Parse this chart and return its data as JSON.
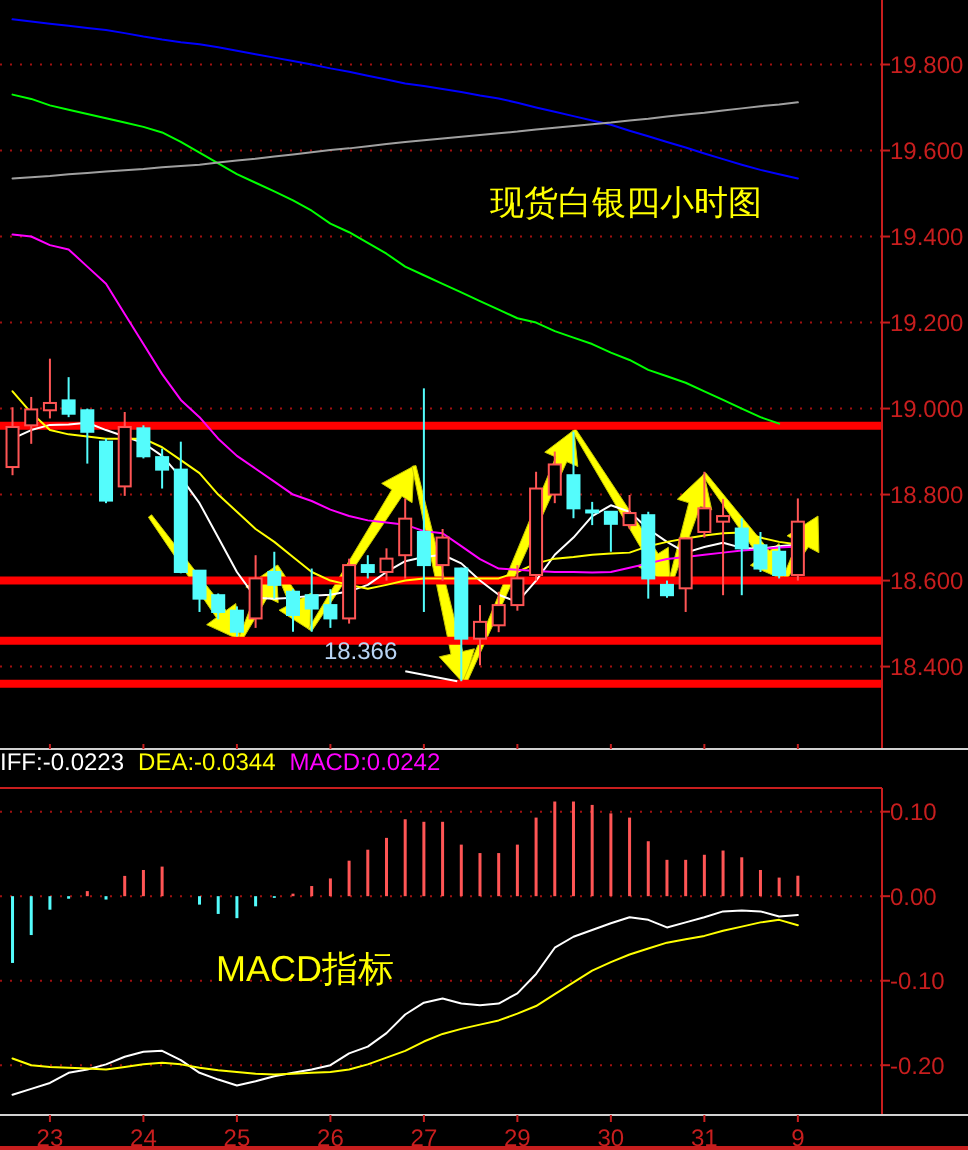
{
  "chart_data": [
    {
      "type": "candlestick",
      "title": "现货白银四小时图",
      "categories": [
        null,
        null,
        "23",
        null,
        null,
        null,
        null,
        "24",
        null,
        null,
        null,
        null,
        "25",
        null,
        null,
        null,
        null,
        "26",
        null,
        null,
        null,
        null,
        "27",
        null,
        null,
        null,
        null,
        "29",
        null,
        null,
        null,
        null,
        "30",
        null,
        null,
        null,
        null,
        "31",
        null,
        null,
        null,
        null,
        "9"
      ],
      "ohlc": [
        [
          18.864,
          19.003,
          18.845,
          18.957
        ],
        [
          18.961,
          19.027,
          18.918,
          18.998
        ],
        [
          18.996,
          19.116,
          18.977,
          19.013
        ],
        [
          19.019,
          19.073,
          18.98,
          18.988
        ],
        [
          18.996,
          19.0,
          18.872,
          18.946
        ],
        [
          18.923,
          18.93,
          18.78,
          18.786
        ],
        [
          18.819,
          18.992,
          18.797,
          18.957
        ],
        [
          18.954,
          18.961,
          18.884,
          18.889
        ],
        [
          18.887,
          18.907,
          18.814,
          18.858
        ],
        [
          18.858,
          18.923,
          18.617,
          18.62
        ],
        [
          18.623,
          18.623,
          18.527,
          18.558
        ],
        [
          18.566,
          18.57,
          18.51,
          18.527
        ],
        [
          18.53,
          18.54,
          18.47,
          18.481
        ],
        [
          18.512,
          18.659,
          18.49,
          18.605
        ],
        [
          18.62,
          18.667,
          18.558,
          18.59
        ],
        [
          18.574,
          18.58,
          18.481,
          18.52
        ],
        [
          18.566,
          18.628,
          18.481,
          18.535
        ],
        [
          18.543,
          18.58,
          18.49,
          18.512
        ],
        [
          18.512,
          18.651,
          18.5,
          18.636
        ],
        [
          18.636,
          18.659,
          18.605,
          18.62
        ],
        [
          18.62,
          18.675,
          18.6,
          18.651
        ],
        [
          18.659,
          18.791,
          18.605,
          18.744
        ],
        [
          18.713,
          19.047,
          18.527,
          18.636
        ],
        [
          18.636,
          18.72,
          18.6,
          18.7
        ],
        [
          18.628,
          18.63,
          18.366,
          18.465
        ],
        [
          18.465,
          18.543,
          18.403,
          18.504
        ],
        [
          18.496,
          18.574,
          18.48,
          18.543
        ],
        [
          18.543,
          18.636,
          18.53,
          18.605
        ],
        [
          18.613,
          18.853,
          18.6,
          18.814
        ],
        [
          18.8,
          18.9,
          18.78,
          18.87
        ],
        [
          18.845,
          18.946,
          18.745,
          18.768
        ],
        [
          18.763,
          18.783,
          18.729,
          18.76
        ],
        [
          18.76,
          18.76,
          18.667,
          18.732
        ],
        [
          18.729,
          18.799,
          18.72,
          18.757
        ],
        [
          18.752,
          18.76,
          18.558,
          18.605
        ],
        [
          18.59,
          18.6,
          18.56,
          18.566
        ],
        [
          18.582,
          18.7,
          18.527,
          18.698
        ],
        [
          18.713,
          18.853,
          18.7,
          18.768
        ],
        [
          18.737,
          18.79,
          18.566,
          18.75
        ],
        [
          18.721,
          18.745,
          18.566,
          18.675
        ],
        [
          18.682,
          18.713,
          18.62,
          18.628
        ],
        [
          18.667,
          18.68,
          18.605,
          18.613
        ],
        [
          18.613,
          18.791,
          18.6,
          18.737
        ]
      ],
      "series": [
        {
          "type": "line",
          "color": "#ffffff",
          "values": [
            18.93,
            18.95,
            18.962,
            18.963,
            18.967,
            18.95,
            18.935,
            18.92,
            18.89,
            18.84,
            18.78,
            18.7,
            18.62,
            18.56,
            18.558,
            18.56,
            18.565,
            18.567,
            18.575,
            18.59,
            18.62,
            18.645,
            18.655,
            18.66,
            18.64,
            18.6,
            18.567,
            18.55,
            18.6,
            18.66,
            18.7,
            18.75,
            18.775,
            18.76,
            18.72,
            18.69,
            18.665,
            18.678,
            18.688,
            18.676,
            18.674,
            18.68,
            18.684
          ]
        },
        {
          "type": "line",
          "color": "#ffff00",
          "values": [
            19.04,
            18.99,
            18.95,
            18.94,
            18.935,
            18.93,
            18.93,
            18.93,
            18.91,
            18.88,
            18.85,
            18.8,
            18.76,
            18.72,
            18.69,
            18.655,
            18.62,
            18.6,
            18.59,
            18.581,
            18.59,
            18.6,
            18.605,
            18.605,
            18.605,
            18.605,
            18.605,
            18.62,
            18.64,
            18.651,
            18.655,
            18.66,
            18.663,
            18.665,
            18.68,
            18.69,
            18.698,
            18.705,
            18.71,
            18.712,
            18.7,
            18.69,
            18.684
          ]
        },
        {
          "type": "line",
          "color": "#ff00ff",
          "values": [
            19.405,
            19.4,
            19.38,
            19.37,
            19.33,
            19.29,
            19.22,
            19.15,
            19.08,
            19.02,
            18.98,
            18.93,
            18.89,
            18.86,
            18.83,
            18.8,
            18.785,
            18.765,
            18.75,
            18.74,
            18.735,
            18.73,
            18.715,
            18.71,
            18.68,
            18.65,
            18.628,
            18.625,
            18.622,
            18.62,
            18.62,
            18.619,
            18.62,
            18.63,
            18.64,
            18.65,
            18.655,
            18.66,
            18.665,
            18.67,
            18.673,
            18.677,
            18.679
          ]
        },
        {
          "type": "line",
          "color": "#00ff00",
          "values": [
            19.73,
            19.72,
            19.705,
            19.695,
            19.685,
            19.675,
            19.665,
            19.655,
            19.642,
            19.62,
            19.595,
            19.57,
            19.545,
            19.525,
            19.505,
            19.484,
            19.46,
            19.43,
            19.41,
            19.385,
            19.36,
            19.33,
            19.31,
            19.29,
            19.27,
            19.25,
            19.23,
            19.21,
            19.2,
            19.18,
            19.165,
            19.15,
            19.13,
            19.113,
            19.09,
            19.075,
            19.06,
            19.04,
            19.02,
            19.0,
            18.98,
            18.965,
            null
          ]
        },
        {
          "type": "line",
          "color": "#0000ff",
          "values": [
            19.905,
            19.9,
            19.895,
            19.89,
            19.885,
            19.88,
            19.873,
            19.865,
            19.858,
            19.852,
            19.847,
            19.84,
            19.832,
            19.824,
            19.816,
            19.808,
            19.8,
            19.791,
            19.783,
            19.774,
            19.765,
            19.756,
            19.75,
            19.743,
            19.736,
            19.728,
            19.721,
            19.711,
            19.7,
            19.69,
            19.68,
            19.67,
            19.66,
            19.646,
            19.633,
            19.62,
            19.607,
            19.593,
            19.58,
            19.567,
            19.555,
            19.545,
            19.535
          ]
        },
        {
          "type": "line",
          "color": "#a0a0a0",
          "values": [
            19.535,
            19.538,
            19.541,
            19.545,
            19.548,
            19.551,
            19.554,
            19.557,
            19.561,
            19.564,
            19.567,
            19.572,
            19.577,
            19.581,
            19.586,
            19.591,
            19.596,
            19.601,
            19.605,
            19.61,
            19.615,
            19.62,
            19.624,
            19.628,
            19.632,
            19.636,
            19.64,
            19.644,
            19.649,
            19.653,
            19.657,
            19.661,
            19.665,
            19.67,
            19.674,
            19.679,
            19.684,
            19.688,
            19.693,
            19.698,
            19.703,
            19.707,
            19.712
          ]
        }
      ],
      "ylim": [
        18.22,
        19.95
      ],
      "yticks": [
        {
          "value": 18.4,
          "label": "18.400"
        },
        {
          "value": 18.6,
          "label": "18.600"
        },
        {
          "value": 18.8,
          "label": "18.800"
        },
        {
          "value": 19.0,
          "label": "19.000"
        },
        {
          "value": 19.2,
          "label": "19.200"
        },
        {
          "value": 19.4,
          "label": "19.400"
        },
        {
          "value": 19.6,
          "label": "19.600"
        },
        {
          "value": 19.8,
          "label": "19.800"
        }
      ],
      "grid": "y",
      "tick_labels": "y",
      "ref_lines": [
        {
          "axis": "y",
          "value": 18.96,
          "color": "#ff0000"
        },
        {
          "axis": "y",
          "value": 18.6,
          "color": "#ff0000"
        },
        {
          "axis": "y",
          "value": 18.46,
          "color": "#ff0000"
        },
        {
          "axis": "y",
          "value": 18.36,
          "color": "#ff0000"
        }
      ],
      "annotations": [
        {
          "text": "18.366",
          "y": 18.366
        }
      ]
    },
    {
      "type": "bar",
      "categories": [
        null,
        null,
        "23",
        null,
        null,
        null,
        null,
        "24",
        null,
        null,
        null,
        null,
        "25",
        null,
        null,
        null,
        null,
        "26",
        null,
        null,
        null,
        null,
        "27",
        null,
        null,
        null,
        null,
        "29",
        null,
        null,
        null,
        null,
        "30",
        null,
        null,
        null,
        null,
        "31",
        null,
        null,
        null,
        null,
        "9"
      ],
      "series": [
        {
          "name": "IFF:-0.0223",
          "type": "line",
          "color": "#ffffff",
          "values": [
            -0.235,
            -0.228,
            -0.221,
            -0.209,
            -0.205,
            -0.199,
            -0.19,
            -0.184,
            -0.183,
            -0.194,
            -0.209,
            -0.217,
            -0.224,
            -0.219,
            -0.213,
            -0.209,
            -0.205,
            -0.2,
            -0.186,
            -0.178,
            -0.162,
            -0.14,
            -0.126,
            -0.121,
            -0.127,
            -0.129,
            -0.127,
            -0.115,
            -0.092,
            -0.061,
            -0.048,
            -0.04,
            -0.032,
            -0.025,
            -0.028,
            -0.037,
            -0.031,
            -0.025,
            -0.018,
            -0.017,
            -0.018,
            -0.024,
            -0.0223
          ]
        },
        {
          "name": "DEA:-0.0344",
          "type": "line",
          "color": "#ffff00",
          "values": [
            -0.192,
            -0.2,
            -0.202,
            -0.203,
            -0.204,
            -0.205,
            -0.202,
            -0.199,
            -0.197,
            -0.199,
            -0.203,
            -0.206,
            -0.208,
            -0.21,
            -0.211,
            -0.21,
            -0.209,
            -0.208,
            -0.205,
            -0.199,
            -0.191,
            -0.183,
            -0.172,
            -0.163,
            -0.157,
            -0.152,
            -0.147,
            -0.139,
            -0.13,
            -0.116,
            -0.102,
            -0.088,
            -0.078,
            -0.069,
            -0.062,
            -0.055,
            -0.051,
            -0.047,
            -0.041,
            -0.036,
            -0.031,
            -0.028,
            -0.0344
          ]
        },
        {
          "name": "MACD:0.0242",
          "type": "bar",
          "color": "#ff00ff",
          "colors": [
            "#54fcfc",
            "#54fcfc",
            "#54fcfc",
            "#54fcfc",
            "#ff5555",
            "#54fcfc",
            "#ff5555",
            "#ff5555",
            "#ff5555",
            "#ff5555",
            "#54fcfc",
            "#54fcfc",
            "#54fcfc",
            "#54fcfc",
            "#54fcfc",
            "#ff5555",
            "#ff5555",
            "#ff5555",
            "#ff5555",
            "#ff5555",
            "#ff5555",
            "#ff5555",
            "#ff5555",
            "#ff5555",
            "#ff5555",
            "#ff5555",
            "#ff5555",
            "#ff5555",
            "#ff5555",
            "#ff5555",
            "#ff5555",
            "#ff5555",
            "#ff5555",
            "#ff5555",
            "#ff5555",
            "#ff5555",
            "#ff5555",
            "#ff5555",
            "#ff5555",
            "#ff5555",
            "#ff5555",
            "#ff5555",
            "#ff5555"
          ],
          "values": [
            -0.079,
            -0.046,
            -0.016,
            -0.003,
            0.006,
            -0.004,
            0.024,
            0.031,
            0.035,
            0,
            -0.01,
            -0.021,
            -0.026,
            -0.012,
            -0.002,
            0.003,
            0.012,
            0.021,
            0.042,
            0.055,
            0.069,
            0.091,
            0.088,
            0.088,
            0.061,
            0.051,
            0.051,
            0.061,
            0.093,
            0.112,
            0.112,
            0.108,
            0.098,
            0.093,
            0.065,
            0.043,
            0.043,
            0.049,
            0.054,
            0.046,
            0.031,
            0.022,
            0.0242
          ]
        }
      ],
      "ylim": [
        -0.253,
        0.128
      ],
      "yticks": [
        {
          "value": -0.2,
          "label": "-0.20"
        },
        {
          "value": -0.1,
          "label": "-0.10"
        },
        {
          "value": 0,
          "label": "0.00"
        },
        {
          "value": 0.1,
          "label": "0.10"
        }
      ],
      "grid": "y",
      "legend": "top left",
      "annotations": [
        "MACD指标"
      ]
    }
  ]
}
